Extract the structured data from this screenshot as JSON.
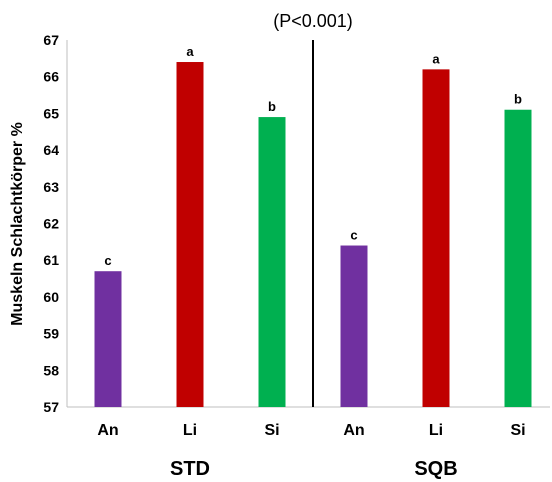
{
  "chart_data": {
    "type": "bar",
    "ylabel": "Muskeln Schlachtkörper %",
    "ylim": [
      57,
      67
    ],
    "yticks": [
      57,
      58,
      59,
      60,
      61,
      62,
      63,
      64,
      65,
      66,
      67
    ],
    "annotation": "(P<0.001)",
    "grid": false,
    "groups": [
      {
        "name": "STD",
        "bars": [
          {
            "category": "An",
            "value": 60.7,
            "label": "c",
            "color": "#7030A0"
          },
          {
            "category": "Li",
            "value": 66.4,
            "label": "a",
            "color": "#C00000"
          },
          {
            "category": "Si",
            "value": 64.9,
            "label": "b",
            "color": "#00B050"
          }
        ]
      },
      {
        "name": "SQB",
        "bars": [
          {
            "category": "An",
            "value": 61.4,
            "label": "c",
            "color": "#7030A0"
          },
          {
            "category": "Li",
            "value": 66.2,
            "label": "a",
            "color": "#C00000"
          },
          {
            "category": "Si",
            "value": 65.1,
            "label": "b",
            "color": "#00B050"
          }
        ]
      }
    ]
  }
}
